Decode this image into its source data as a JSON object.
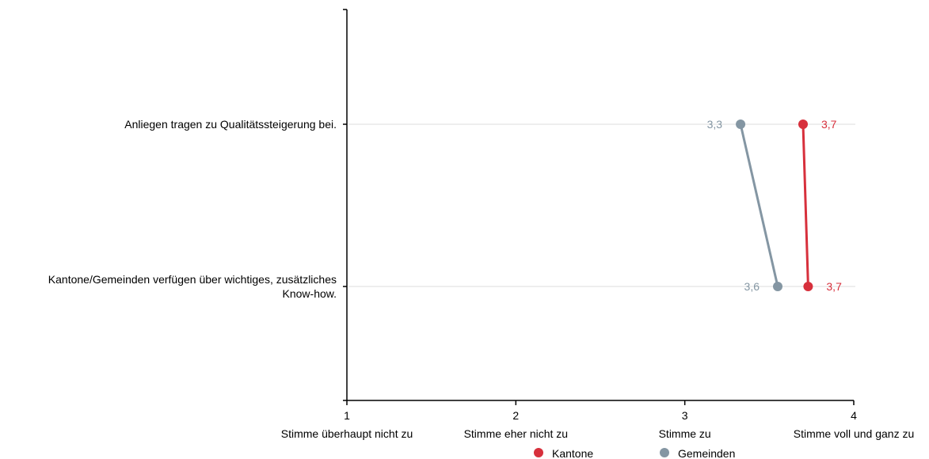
{
  "chart_data": {
    "type": "line",
    "orientation": "horizontal",
    "categories": [
      "Anliegen tragen zu Qualitätssteigerung bei.",
      "Kantone/Gemeinden verfügen über wichtiges, zusätzliches Know-how."
    ],
    "category_lines": [
      [
        "Anliegen tragen zu Qualitätssteigerung bei."
      ],
      [
        "Kantone/Gemeinden verfügen über wichtiges, zusätzliches",
        "Know-how."
      ]
    ],
    "series": [
      {
        "name": "Kantone",
        "color": "#d7303c",
        "values": [
          3.7,
          3.73
        ],
        "labels": [
          "3,7",
          "3,7"
        ]
      },
      {
        "name": "Gemeinden",
        "color": "#8496a3",
        "values": [
          3.33,
          3.55
        ],
        "labels": [
          "3,3",
          "3,6"
        ]
      }
    ],
    "xlim": [
      1,
      4
    ],
    "xticks": [
      {
        "value": 1,
        "label": "1",
        "text": "Stimme überhaupt nicht zu"
      },
      {
        "value": 2,
        "label": "2",
        "text": "Stimme eher nicht zu"
      },
      {
        "value": 3,
        "label": "3",
        "text": "Stimme zu"
      },
      {
        "value": 4,
        "label": "4",
        "text": "Stimme voll und ganz zu"
      }
    ],
    "grid": "horizontal",
    "legend_position": "bottom"
  }
}
